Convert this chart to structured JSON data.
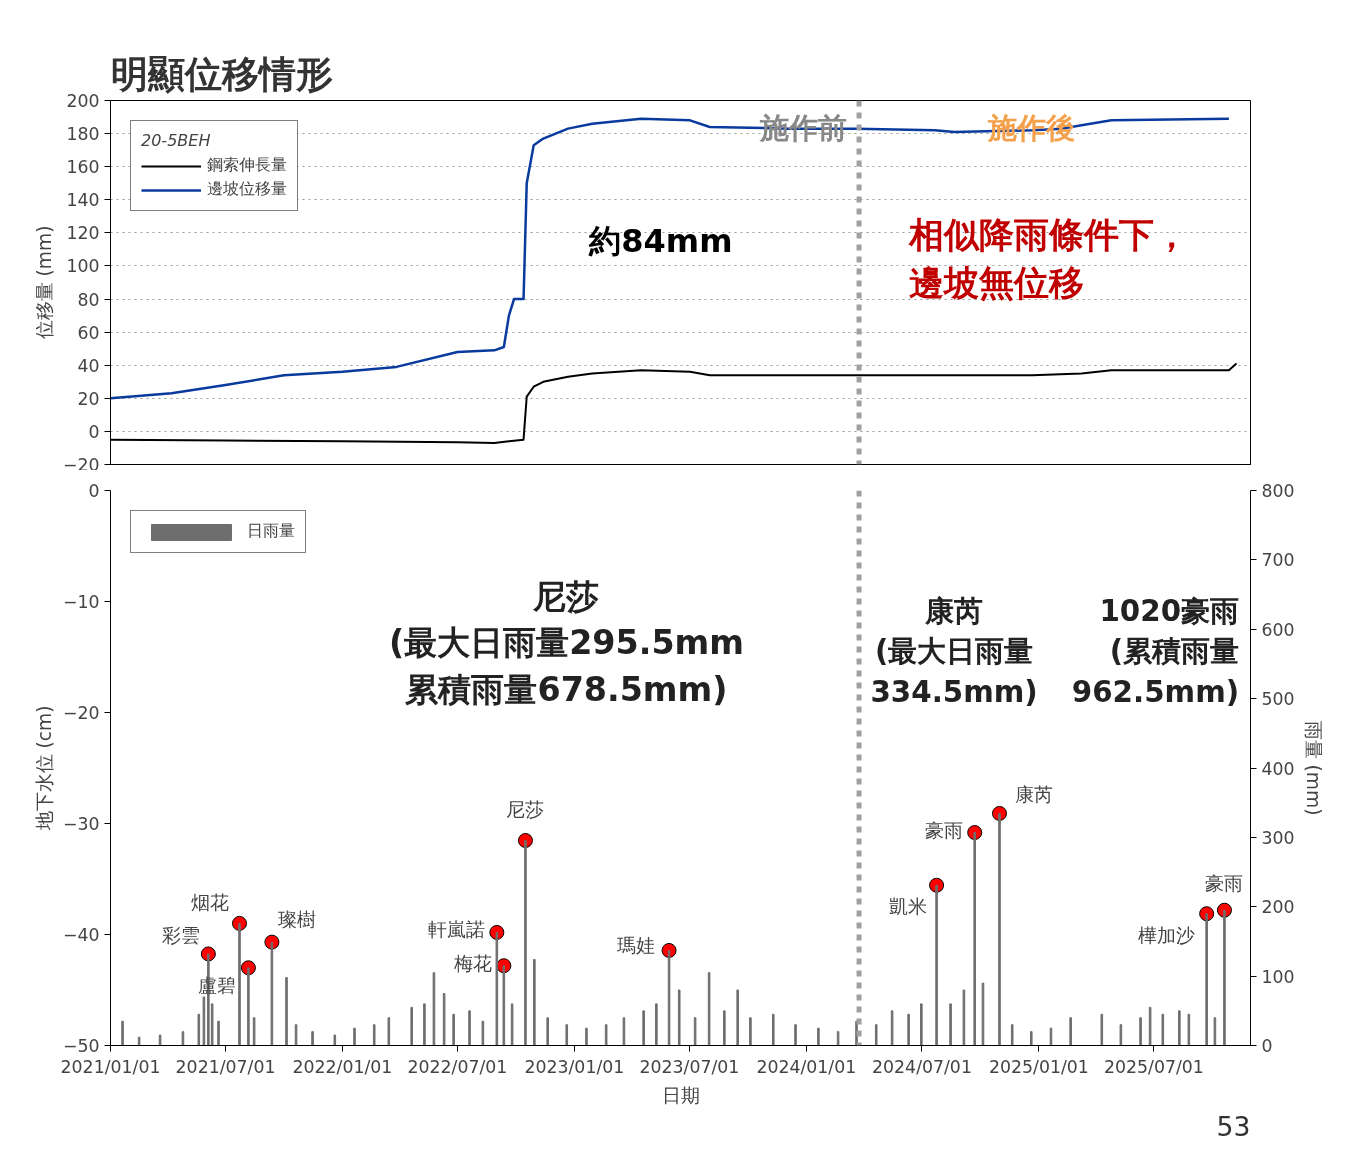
{
  "chart_data": [
    {
      "type": "line",
      "title": "明顯位移情形",
      "ylabel": "位移量 (mm)",
      "legend_title": "20-5BEH",
      "legend": "top left",
      "grid": "y",
      "tick_labels": "y",
      "xlim": [
        "2021-01-01",
        "2025-11-30"
      ],
      "ylim": [
        -20,
        200
      ],
      "yticks": [
        -20,
        0,
        20,
        40,
        60,
        80,
        100,
        120,
        140,
        160,
        180,
        200
      ],
      "xticks": [
        {
          "value": "2021-01-01",
          "label": null
        },
        {
          "value": "2021-07-01",
          "label": null
        },
        {
          "value": "2022-01-01",
          "label": null
        },
        {
          "value": "2022-07-01",
          "label": null
        },
        {
          "value": "2023-01-01",
          "label": null
        },
        {
          "value": "2023-07-01",
          "label": null
        },
        {
          "value": "2024-01-01",
          "label": null
        },
        {
          "value": "2024-07-01",
          "label": null
        },
        {
          "value": "2025-01-01",
          "label": null
        },
        {
          "value": "2025-07-01",
          "label": null
        }
      ],
      "series": [
        {
          "name": "鋼索伸長量",
          "color": "#000000",
          "x": [
            "2021-01-01",
            "2021-07-01",
            "2022-01-01",
            "2022-07-01",
            "2022-08-28",
            "2022-09-20",
            "2022-10-13",
            "2022-10-18",
            "2022-10-29",
            "2022-11-13",
            "2022-12-22",
            "2023-01-29",
            "2023-04-16",
            "2023-07-02",
            "2023-08-02",
            "2023-12-03",
            "2024-03-20",
            "2024-07-21",
            "2024-12-22",
            "2025-03-09",
            "2025-04-25",
            "2025-10-27",
            "2025-11-08"
          ],
          "values": [
            -5,
            -5.5,
            -6,
            -6.5,
            -7,
            -6,
            -5,
            21,
            27,
            30,
            33,
            35,
            37,
            36,
            34,
            34,
            34,
            34,
            34,
            35,
            37,
            37,
            41
          ]
        },
        {
          "name": "邊坡位移量",
          "color": "#0a3a9e",
          "x": [
            "2021-01-01",
            "2021-04-07",
            "2021-07-01",
            "2021-10-01",
            "2022-01-01",
            "2022-03-27",
            "2022-07-01",
            "2022-08-28",
            "2022-09-12",
            "2022-09-20",
            "2022-09-28",
            "2022-10-13",
            "2022-10-18",
            "2022-10-29",
            "2022-11-13",
            "2022-12-22",
            "2023-01-29",
            "2023-04-16",
            "2023-07-02",
            "2023-08-02",
            "2023-12-03",
            "2024-03-20",
            "2024-07-21",
            "2024-08-21",
            "2024-12-22",
            "2025-02-07",
            "2025-03-09",
            "2025-04-25",
            "2025-10-27"
          ],
          "values": [
            20,
            23,
            28,
            34,
            36,
            39,
            48,
            49,
            51,
            70,
            80,
            80,
            150,
            173,
            177,
            183,
            186,
            189,
            188,
            184,
            183,
            183,
            182,
            181,
            182,
            183,
            185,
            188,
            189
          ]
        }
      ],
      "ref_lines": [
        {
          "axis": "x",
          "value": "2024-03-24",
          "color": "#a0a0a0",
          "line_style": "dashed"
        }
      ],
      "annotations": [
        "約84mm",
        "相似降雨條件下，邊坡無位移",
        "施作前",
        "施作後"
      ]
    },
    {
      "type": "bar",
      "ylabel": "地下水位 (cm)",
      "y2label": "雨量 (mm)",
      "xlabel": "日期",
      "legend": "top left",
      "xlim": [
        "2021-01-01",
        "2025-11-30"
      ],
      "ylim": [
        -50,
        0
      ],
      "yticks": [
        -50,
        -40,
        -30,
        -20,
        -10,
        0
      ],
      "y2lim": [
        0,
        800
      ],
      "y2ticks": [
        0,
        100,
        200,
        300,
        400,
        500,
        600,
        700,
        800
      ],
      "xticks": [
        {
          "value": "2021-01-01",
          "label": "2021/01/01"
        },
        {
          "value": "2021-07-01",
          "label": "2021/07/01"
        },
        {
          "value": "2022-01-01",
          "label": "2022/01/01"
        },
        {
          "value": "2022-07-01",
          "label": "2022/07/01"
        },
        {
          "value": "2023-01-01",
          "label": "2023/01/01"
        },
        {
          "value": "2023-07-01",
          "label": "2023/07/01"
        },
        {
          "value": "2024-01-01",
          "label": "2024/01/01"
        },
        {
          "value": "2024-07-01",
          "label": "2024/07/01"
        },
        {
          "value": "2025-01-01",
          "label": "2025/01/01"
        },
        {
          "value": "2025-07-01",
          "label": "2025/07/01"
        }
      ],
      "series": [
        {
          "name": "日雨量",
          "type": "bar",
          "axis": "y2",
          "color": "#6e6e6e",
          "x": [
            "2021-01-20",
            "2021-02-15",
            "2021-03-20",
            "2021-04-25",
            "2021-05-20",
            "2021-05-28",
            "2021-06-04",
            "2021-06-10",
            "2021-06-20",
            "2021-07-23",
            "2021-08-06",
            "2021-08-15",
            "2021-09-12",
            "2021-10-05",
            "2021-10-20",
            "2021-11-15",
            "2021-12-20",
            "2022-01-20",
            "2022-02-20",
            "2022-03-15",
            "2022-04-20",
            "2022-05-10",
            "2022-05-25",
            "2022-06-10",
            "2022-06-25",
            "2022-07-20",
            "2022-08-10",
            "2022-09-01",
            "2022-09-12",
            "2022-09-25",
            "2022-10-16",
            "2022-10-30",
            "2022-11-20",
            "2022-12-20",
            "2023-01-20",
            "2023-02-20",
            "2023-03-20",
            "2023-04-20",
            "2023-05-10",
            "2023-05-30",
            "2023-06-15",
            "2023-07-10",
            "2023-08-01",
            "2023-08-25",
            "2023-09-15",
            "2023-10-05",
            "2023-11-10",
            "2023-12-15",
            "2024-01-20",
            "2024-02-20",
            "2024-03-20",
            "2024-04-20",
            "2024-05-15",
            "2024-06-10",
            "2024-06-30",
            "2024-07-24",
            "2024-08-15",
            "2024-09-05",
            "2024-09-22",
            "2024-10-05",
            "2024-10-31",
            "2024-11-20",
            "2024-12-20",
            "2025-01-20",
            "2025-02-20",
            "2025-04-10",
            "2025-05-10",
            "2025-06-10",
            "2025-06-25",
            "2025-07-15",
            "2025-08-10",
            "2025-08-25",
            "2025-09-22",
            "2025-10-05",
            "2025-10-20"
          ],
          "values": [
            35,
            12,
            15,
            20,
            45,
            70,
            132,
            60,
            35,
            176,
            112,
            40,
            149,
            98,
            30,
            20,
            15,
            25,
            30,
            40,
            55,
            60,
            105,
            75,
            45,
            50,
            35,
            163,
            115,
            60,
            295.5,
            124,
            40,
            30,
            25,
            30,
            40,
            50,
            60,
            137,
            80,
            40,
            105,
            50,
            80,
            40,
            45,
            30,
            25,
            20,
            35,
            30,
            50,
            45,
            60,
            231,
            60,
            80,
            307,
            90,
            334.5,
            30,
            20,
            25,
            40,
            45,
            30,
            40,
            55,
            45,
            50,
            45,
            190,
            40,
            195
          ]
        },
        {
          "type": "scatter",
          "axis": "y2",
          "color": "#ff0000",
          "marker": "circle",
          "x": [
            "2021-06-04",
            "2021-07-23",
            "2021-08-06",
            "2021-09-12",
            "2022-09-01",
            "2022-09-12",
            "2022-10-16",
            "2023-05-30",
            "2024-07-24",
            "2024-09-22",
            "2024-10-31",
            "2025-09-22",
            "2025-10-20"
          ],
          "values": [
            132,
            176,
            112,
            149,
            163,
            115,
            295.5,
            137,
            231,
            307,
            334.5,
            190,
            195
          ],
          "value_labels": [
            "彩雲",
            "烟花",
            "盧碧",
            "璨樹",
            "軒嵐諾",
            "梅花",
            "尼莎",
            "瑪娃",
            "凱米",
            "豪雨",
            "康芮",
            "樺加沙",
            "豪雨"
          ]
        }
      ],
      "ref_lines": [
        {
          "axis": "x",
          "value": "2024-03-24",
          "color": "#a0a0a0",
          "line_style": "dashed"
        }
      ],
      "annotations": [
        "尼莎\n(最大日雨量295.5mm\n累積雨量678.5mm)",
        "康芮\n(最大日雨量\n334.5mm)",
        "1020豪雨\n(累積雨量\n962.5mm)",
        "53"
      ]
    }
  ]
}
